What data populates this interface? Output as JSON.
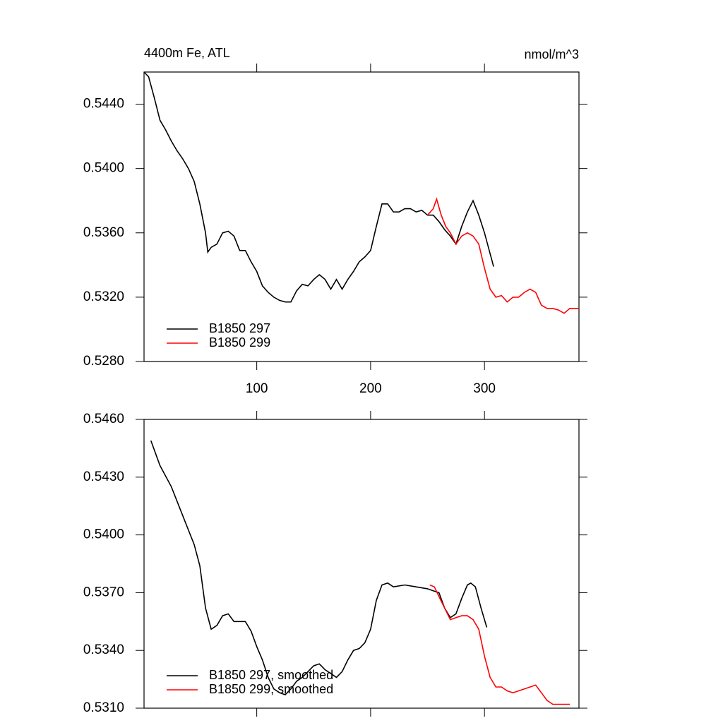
{
  "chart_data": [
    {
      "type": "line",
      "title": "4400m Fe, ATL",
      "subtitle": "nmol/m^3",
      "xlim": [
        1,
        383
      ],
      "xticks": [
        100,
        200,
        300
      ],
      "ylim": [
        0.528,
        0.546
      ],
      "yticks": [
        {
          "value": 0.528,
          "label": "0.5280"
        },
        {
          "value": 0.532,
          "label": "0.5320"
        },
        {
          "value": 0.536,
          "label": "0.5360"
        },
        {
          "value": 0.54,
          "label": "0.5400"
        },
        {
          "value": 0.544,
          "label": "0.5440"
        }
      ],
      "legend": "lower left",
      "series": [
        {
          "name": "B1850 297",
          "color": "#000000",
          "x": [
            1,
            5,
            10,
            15,
            20,
            25,
            30,
            35,
            40,
            45,
            50,
            55,
            57,
            60,
            65,
            70,
            75,
            80,
            85,
            90,
            95,
            100,
            105,
            110,
            115,
            120,
            125,
            130,
            135,
            140,
            145,
            150,
            155,
            160,
            165,
            170,
            175,
            180,
            185,
            190,
            195,
            200,
            205,
            210,
            215,
            220,
            225,
            230,
            235,
            240,
            245,
            250,
            255,
            260,
            265,
            270,
            275,
            280,
            285,
            290,
            295,
            300,
            305,
            308
          ],
          "values": [
            0.546,
            0.5457,
            0.5444,
            0.543,
            0.5424,
            0.5417,
            0.5411,
            0.5406,
            0.54,
            0.5392,
            0.5378,
            0.536,
            0.5348,
            0.5351,
            0.5353,
            0.536,
            0.5361,
            0.5358,
            0.5349,
            0.5349,
            0.5342,
            0.5336,
            0.5327,
            0.5323,
            0.532,
            0.5318,
            0.5317,
            0.5317,
            0.5324,
            0.5328,
            0.5327,
            0.5331,
            0.5334,
            0.5331,
            0.5325,
            0.5331,
            0.5325,
            0.5331,
            0.5336,
            0.5342,
            0.5345,
            0.5349,
            0.5364,
            0.5378,
            0.5378,
            0.5373,
            0.5373,
            0.5375,
            0.5375,
            0.5373,
            0.5374,
            0.5371,
            0.5371,
            0.5367,
            0.5362,
            0.5358,
            0.5353,
            0.5364,
            0.5373,
            0.538,
            0.5371,
            0.536,
            0.5347,
            0.5339
          ]
        },
        {
          "name": "B1850 299",
          "color": "#ff0000",
          "x": [
            250,
            255,
            258,
            262,
            266,
            270,
            275,
            280,
            285,
            290,
            295,
            300,
            305,
            310,
            315,
            320,
            325,
            330,
            335,
            340,
            345,
            350,
            355,
            360,
            365,
            370,
            375,
            380,
            383
          ],
          "values": [
            0.5371,
            0.5375,
            0.5381,
            0.5371,
            0.5364,
            0.536,
            0.5353,
            0.5358,
            0.536,
            0.5358,
            0.5353,
            0.5338,
            0.5325,
            0.532,
            0.5321,
            0.5317,
            0.532,
            0.532,
            0.5323,
            0.5325,
            0.5323,
            0.5315,
            0.5313,
            0.5313,
            0.5312,
            0.531,
            0.5313,
            0.5313,
            0.5313
          ]
        }
      ]
    },
    {
      "type": "line",
      "xlim": [
        1,
        383
      ],
      "ylim": [
        0.531,
        0.546
      ],
      "yticks": [
        {
          "value": 0.531,
          "label": "0.5310"
        },
        {
          "value": 0.534,
          "label": "0.5340"
        },
        {
          "value": 0.537,
          "label": "0.5370"
        },
        {
          "value": 0.54,
          "label": "0.5400"
        },
        {
          "value": 0.543,
          "label": "0.5430"
        },
        {
          "value": 0.546,
          "label": "0.5460"
        }
      ],
      "legend": "lower left",
      "series": [
        {
          "name": "B1850 297, smoothed",
          "color": "#000000",
          "x": [
            7,
            15,
            25,
            35,
            45,
            50,
            55,
            60,
            65,
            70,
            75,
            80,
            85,
            90,
            95,
            100,
            105,
            110,
            115,
            120,
            125,
            130,
            135,
            140,
            145,
            150,
            155,
            160,
            165,
            170,
            175,
            180,
            185,
            190,
            195,
            200,
            205,
            210,
            215,
            220,
            230,
            240,
            250,
            255,
            260,
            265,
            270,
            275,
            280,
            285,
            288,
            292,
            297,
            302
          ],
          "values": [
            0.5449,
            0.5436,
            0.5425,
            0.541,
            0.5395,
            0.5384,
            0.5362,
            0.5351,
            0.5353,
            0.5358,
            0.5359,
            0.5355,
            0.5355,
            0.5355,
            0.535,
            0.5342,
            0.5335,
            0.5326,
            0.532,
            0.5318,
            0.5317,
            0.532,
            0.5324,
            0.5326,
            0.5329,
            0.5332,
            0.5333,
            0.533,
            0.5328,
            0.5326,
            0.5329,
            0.5335,
            0.534,
            0.5341,
            0.5344,
            0.5351,
            0.5366,
            0.5374,
            0.5375,
            0.5373,
            0.5374,
            0.5373,
            0.5372,
            0.5371,
            0.537,
            0.5362,
            0.5357,
            0.5359,
            0.5367,
            0.5374,
            0.5375,
            0.5373,
            0.5362,
            0.5352
          ]
        },
        {
          "name": "B1850 299, smoothed",
          "color": "#ff0000",
          "x": [
            252,
            256,
            260,
            265,
            270,
            275,
            280,
            285,
            290,
            295,
            300,
            305,
            310,
            315,
            320,
            325,
            330,
            335,
            340,
            345,
            350,
            355,
            360,
            365,
            370,
            375
          ],
          "values": [
            0.5374,
            0.5373,
            0.5368,
            0.5362,
            0.5356,
            0.5357,
            0.5358,
            0.5358,
            0.5356,
            0.5351,
            0.5337,
            0.5326,
            0.5321,
            0.5321,
            0.5319,
            0.5318,
            0.5319,
            0.532,
            0.5321,
            0.5322,
            0.5318,
            0.5314,
            0.5312,
            0.5312,
            0.5312,
            0.5312
          ]
        }
      ]
    }
  ]
}
